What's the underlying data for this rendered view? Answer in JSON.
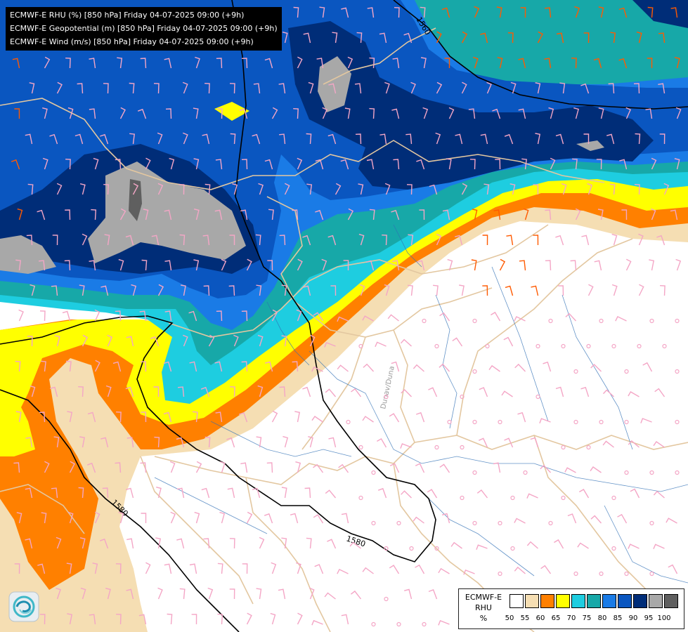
{
  "header": {
    "lines": [
      "ECMWF-E RHU (%) [850 hPa] Friday 04-07-2025 09:00 (+9h)",
      "ECMWF-E Geopotential (m) [850 hPa] Friday 04-07-2025 09:00 (+9h)",
      "ECMWF-E Wind (m/s) [850 hPa] Friday 04-07-2025 09:00 (+9h)"
    ]
  },
  "contours": {
    "labels": [
      "1560",
      "1580",
      "1580"
    ]
  },
  "map_labels": {
    "river": "Dunav/Duna"
  },
  "legend": {
    "title_lines": [
      "ECMWF-E",
      "RHU",
      "%"
    ],
    "ticks": [
      "50",
      "55",
      "60",
      "65",
      "70",
      "75",
      "80",
      "85",
      "90",
      "95",
      "100"
    ],
    "colors": [
      "#ffffff",
      "#f5deb3",
      "#ff8000",
      "#ffff00",
      "#1ecde0",
      "#17a8a8",
      "#1a7be6",
      "#0a56c0",
      "#002d78",
      "#a8a8a8",
      "#5f5f5f"
    ]
  },
  "logo": {
    "icon": "agency-logo-icon"
  }
}
